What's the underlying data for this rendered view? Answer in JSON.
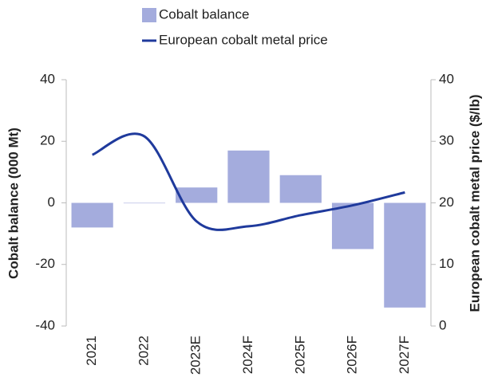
{
  "chart_data": {
    "type": "bar_line",
    "categories": [
      "2021",
      "2022",
      "2023E",
      "2024F",
      "2025F",
      "2026F",
      "2027F"
    ],
    "series": [
      {
        "name": "Cobalt balance",
        "type": "bar",
        "color": "#a4acdd",
        "values": [
          -8,
          0,
          5,
          17,
          9,
          -15,
          -34
        ]
      },
      {
        "name": "European cobalt metal price",
        "type": "line",
        "axis": "y2",
        "color": "#1f3a9c",
        "values": [
          27.8,
          30.8,
          17,
          16.2,
          18,
          19.6,
          21.7
        ]
      }
    ],
    "ylabel": "Cobalt balance (000 Mt)",
    "y2label": "European cobalt metal price ($/lb)",
    "ylim": [
      -40,
      40
    ],
    "yticks": [
      -40,
      -20,
      0,
      20,
      40
    ],
    "y2lim": [
      0,
      40
    ],
    "y2ticks": [
      0,
      10,
      20,
      30,
      40
    ],
    "legend": "top"
  }
}
